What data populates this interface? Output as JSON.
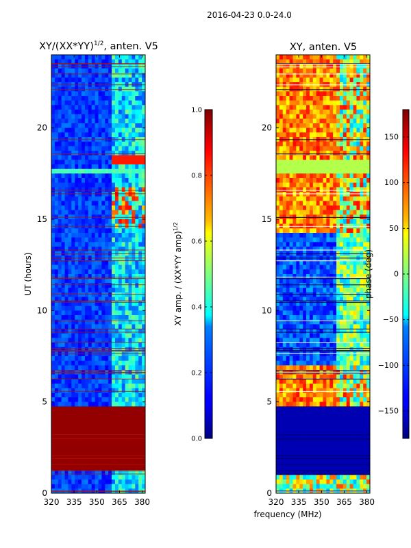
{
  "figure": {
    "suptitle": "2016-04-23 0.0-24.0",
    "shared_xlabel": "frequency (MHz)"
  },
  "colors": {
    "jet_dark_blue": "#00007f",
    "jet_blue": "#0000ff",
    "jet_cyan": "#00ffff",
    "jet_yellow": "#ffff00",
    "jet_red": "#ff0000",
    "jet_dark_red": "#7f0000"
  },
  "chart_data": [
    {
      "type": "heatmap",
      "title_main": "XY/(XX*YY)",
      "title_sup": "1/2",
      "title_rest": ", anten. V5",
      "xlabel": "",
      "ylabel": "UT (hours)",
      "xlim": [
        320,
        382
      ],
      "ylim": [
        0,
        24
      ],
      "xticks": [
        320,
        335,
        350,
        365,
        380
      ],
      "yticks": [
        0,
        5,
        10,
        15,
        20
      ],
      "colorbar": {
        "label_main": "XY amp. / (XX*YY amp)",
        "label_sup": "1/2",
        "range": [
          0.0,
          1.0
        ],
        "ticks": [
          "0.0",
          "0.2",
          "0.4",
          "0.6",
          "0.8",
          "1.0"
        ],
        "tick_values": [
          0.0,
          0.2,
          0.4,
          0.6,
          0.8,
          1.0
        ]
      },
      "features": {
        "saturated_band_hours": [
          1.2,
          4.8
        ],
        "bright_band_hours": [
          17.4,
          17.7
        ],
        "high_channels_start_mhz": 359
      }
    },
    {
      "type": "heatmap",
      "title": "XY, anten. V5",
      "xlabel": "",
      "ylabel": "",
      "xlim": [
        320,
        382
      ],
      "ylim": [
        0,
        24
      ],
      "xticks": [
        320,
        335,
        350,
        365,
        380
      ],
      "yticks": [
        0,
        5,
        10,
        15,
        20
      ],
      "colorbar": {
        "label": "phase (deg)",
        "range": [
          -180,
          180
        ],
        "ticks": [
          "−150",
          "−100",
          "−50",
          "0",
          "50",
          "100",
          "150"
        ],
        "tick_values": [
          -150,
          -100,
          -50,
          0,
          50,
          100,
          150
        ]
      },
      "features": {
        "constant_band_hours": [
          1.1,
          4.8
        ],
        "blue_region_hours": [
          7.0,
          14.2
        ],
        "warm_region_hours": [
          14.2,
          24.0
        ]
      }
    }
  ]
}
